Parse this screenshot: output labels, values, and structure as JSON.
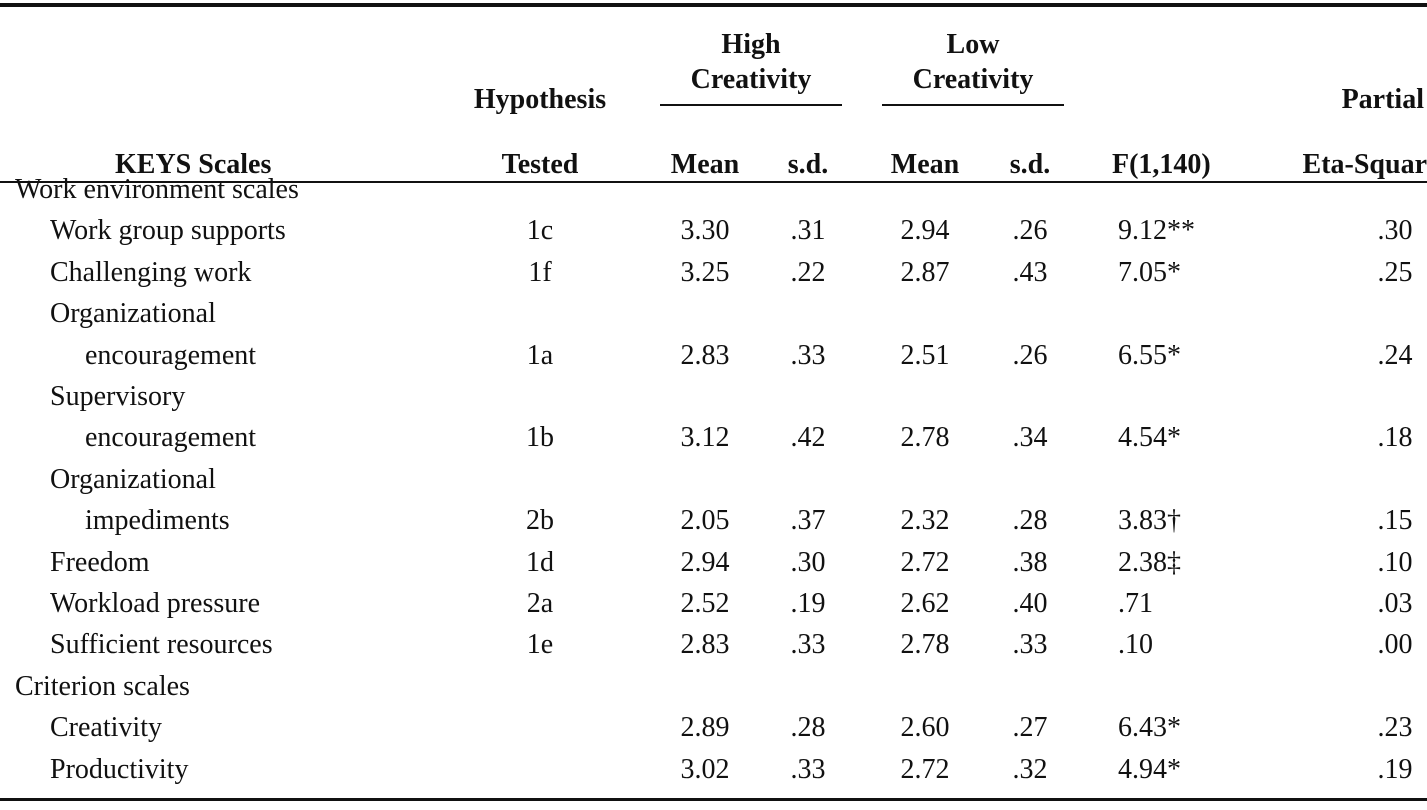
{
  "table": {
    "header": {
      "stub": "KEYS Scales",
      "hypothesis": [
        "Hypothesis",
        "Tested"
      ],
      "groups": [
        [
          "High",
          "Creativity"
        ],
        [
          "Low",
          "Creativity"
        ]
      ],
      "subheaders": [
        "Mean",
        "s.d.",
        "Mean",
        "s.d."
      ],
      "f": "F(1,140)",
      "eta": [
        "Partial",
        "Eta-Squar"
      ]
    },
    "sections": [
      {
        "title": "Work environment scales",
        "rows": [
          {
            "name": "Work group supports",
            "hypothesis": "1c",
            "values": [
              "3.30",
              ".31",
              "2.94",
              ".26",
              "9.12**",
              ".30"
            ]
          },
          {
            "name": "Challenging work",
            "hypothesis": "1f",
            "values": [
              "3.25",
              ".22",
              "2.87",
              ".43",
              "7.05*",
              ".25"
            ]
          },
          {
            "name": [
              "Organizational",
              "encouragement"
            ],
            "hypothesis": "1a",
            "values": [
              "2.83",
              ".33",
              "2.51",
              ".26",
              "6.55*",
              ".24"
            ]
          },
          {
            "name": [
              "Supervisory",
              "encouragement"
            ],
            "hypothesis": "1b",
            "values": [
              "3.12",
              ".42",
              "2.78",
              ".34",
              "4.54*",
              ".18"
            ]
          },
          {
            "name": [
              "Organizational",
              "impediments"
            ],
            "hypothesis": "2b",
            "values": [
              "2.05",
              ".37",
              "2.32",
              ".28",
              "3.83†",
              ".15"
            ]
          },
          {
            "name": "Freedom",
            "hypothesis": "1d",
            "values": [
              "2.94",
              ".30",
              "2.72",
              ".38",
              "2.38‡",
              ".10"
            ]
          },
          {
            "name": "Workload pressure",
            "hypothesis": "2a",
            "values": [
              "2.52",
              ".19",
              "2.62",
              ".40",
              ".71",
              ".03"
            ]
          },
          {
            "name": "Sufficient resources",
            "hypothesis": "1e",
            "values": [
              "2.83",
              ".33",
              "2.78",
              ".33",
              ".10",
              ".00"
            ]
          }
        ]
      },
      {
        "title": "Criterion scales",
        "rows": [
          {
            "name": "Creativity",
            "values": [
              "2.89",
              ".28",
              "2.60",
              ".27",
              "6.43*",
              ".23"
            ]
          },
          {
            "name": "Productivity",
            "values": [
              "3.02",
              ".33",
              "2.72",
              ".32",
              "4.94*",
              ".19"
            ]
          }
        ]
      }
    ]
  }
}
